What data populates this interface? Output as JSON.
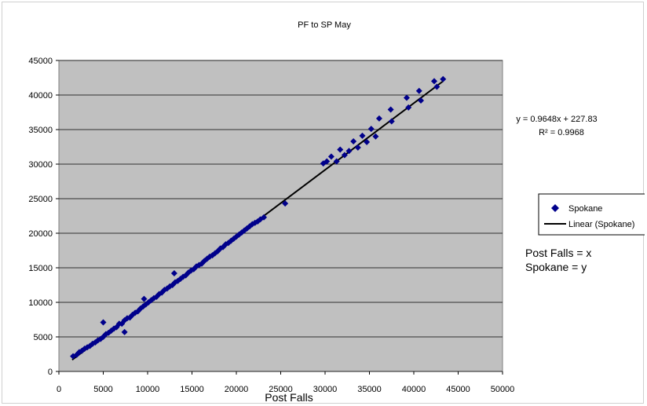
{
  "chart_data": {
    "type": "scatter",
    "title": "PF to SP May",
    "xlabel": "Post Falls",
    "ylabel": "",
    "xlim": [
      0,
      50000
    ],
    "ylim": [
      0,
      45000
    ],
    "xticks": [
      "0",
      "5000",
      "10000",
      "15000",
      "20000",
      "25000",
      "30000",
      "35000",
      "40000",
      "45000",
      "50000"
    ],
    "yticks": [
      "0",
      "5000",
      "10000",
      "15000",
      "20000",
      "25000",
      "30000",
      "35000",
      "40000",
      "45000"
    ],
    "grid": "horizontal",
    "plot_background": "#c0c0c0",
    "legend_position": "right",
    "series": [
      {
        "name": "Spokane",
        "color": "#00008b",
        "marker": "diamond",
        "points": [
          [
            1600,
            2200
          ],
          [
            2000,
            2400
          ],
          [
            2300,
            2800
          ],
          [
            2600,
            3000
          ],
          [
            2900,
            3300
          ],
          [
            3200,
            3500
          ],
          [
            3500,
            3700
          ],
          [
            3800,
            4000
          ],
          [
            4100,
            4200
          ],
          [
            4400,
            4500
          ],
          [
            4700,
            4700
          ],
          [
            5000,
            5000
          ],
          [
            5000,
            7100
          ],
          [
            5300,
            5400
          ],
          [
            5600,
            5600
          ],
          [
            5900,
            5900
          ],
          [
            6200,
            6200
          ],
          [
            6500,
            6400
          ],
          [
            6800,
            6900
          ],
          [
            7100,
            6900
          ],
          [
            7400,
            5700
          ],
          [
            7400,
            7400
          ],
          [
            7700,
            7700
          ],
          [
            8000,
            7800
          ],
          [
            8300,
            8200
          ],
          [
            8600,
            8500
          ],
          [
            8900,
            8700
          ],
          [
            9200,
            9100
          ],
          [
            9500,
            9400
          ],
          [
            9600,
            10500
          ],
          [
            9800,
            9700
          ],
          [
            10100,
            10000
          ],
          [
            10400,
            10300
          ],
          [
            10700,
            10600
          ],
          [
            11000,
            10800
          ],
          [
            11300,
            11200
          ],
          [
            11600,
            11400
          ],
          [
            11900,
            11800
          ],
          [
            12200,
            12000
          ],
          [
            12500,
            12300
          ],
          [
            12800,
            12500
          ],
          [
            13000,
            14200
          ],
          [
            13100,
            12900
          ],
          [
            13400,
            13100
          ],
          [
            13700,
            13400
          ],
          [
            14000,
            13700
          ],
          [
            14300,
            13900
          ],
          [
            14600,
            14300
          ],
          [
            14900,
            14600
          ],
          [
            15200,
            14800
          ],
          [
            15500,
            15200
          ],
          [
            15800,
            15400
          ],
          [
            16100,
            15600
          ],
          [
            16400,
            16000
          ],
          [
            16700,
            16300
          ],
          [
            17000,
            16600
          ],
          [
            17300,
            16800
          ],
          [
            17600,
            17100
          ],
          [
            17900,
            17400
          ],
          [
            18200,
            17800
          ],
          [
            18500,
            18000
          ],
          [
            18800,
            18400
          ],
          [
            19100,
            18600
          ],
          [
            19400,
            18900
          ],
          [
            19700,
            19200
          ],
          [
            20000,
            19500
          ],
          [
            20300,
            19800
          ],
          [
            20600,
            20100
          ],
          [
            20900,
            20400
          ],
          [
            21200,
            20700
          ],
          [
            21500,
            21000
          ],
          [
            21800,
            21300
          ],
          [
            22100,
            21500
          ],
          [
            22400,
            21700
          ],
          [
            22700,
            22000
          ],
          [
            23100,
            22300
          ],
          [
            25500,
            24300
          ],
          [
            29800,
            30100
          ],
          [
            30200,
            30400
          ],
          [
            30700,
            31100
          ],
          [
            31300,
            30400
          ],
          [
            31700,
            32100
          ],
          [
            32200,
            31300
          ],
          [
            32700,
            31900
          ],
          [
            33200,
            33300
          ],
          [
            33700,
            32400
          ],
          [
            34200,
            34100
          ],
          [
            34700,
            33200
          ],
          [
            35200,
            35100
          ],
          [
            35700,
            34000
          ],
          [
            36100,
            36600
          ],
          [
            37400,
            37900
          ],
          [
            37500,
            36200
          ],
          [
            39200,
            39600
          ],
          [
            39400,
            38200
          ],
          [
            40600,
            40600
          ],
          [
            40800,
            39200
          ],
          [
            42300,
            42000
          ],
          [
            42600,
            41200
          ],
          [
            43300,
            42300
          ]
        ]
      }
    ],
    "trendline": {
      "name": "Linear (Spokane)",
      "slope": 0.9648,
      "intercept": 227.83,
      "x_range": [
        1500,
        43300
      ],
      "equation_text": "y = 0.9648x + 227.83",
      "r2_text": "R² = 0.9968"
    },
    "annotations": [
      "Post Falls = x",
      "Spokane  = y"
    ]
  }
}
